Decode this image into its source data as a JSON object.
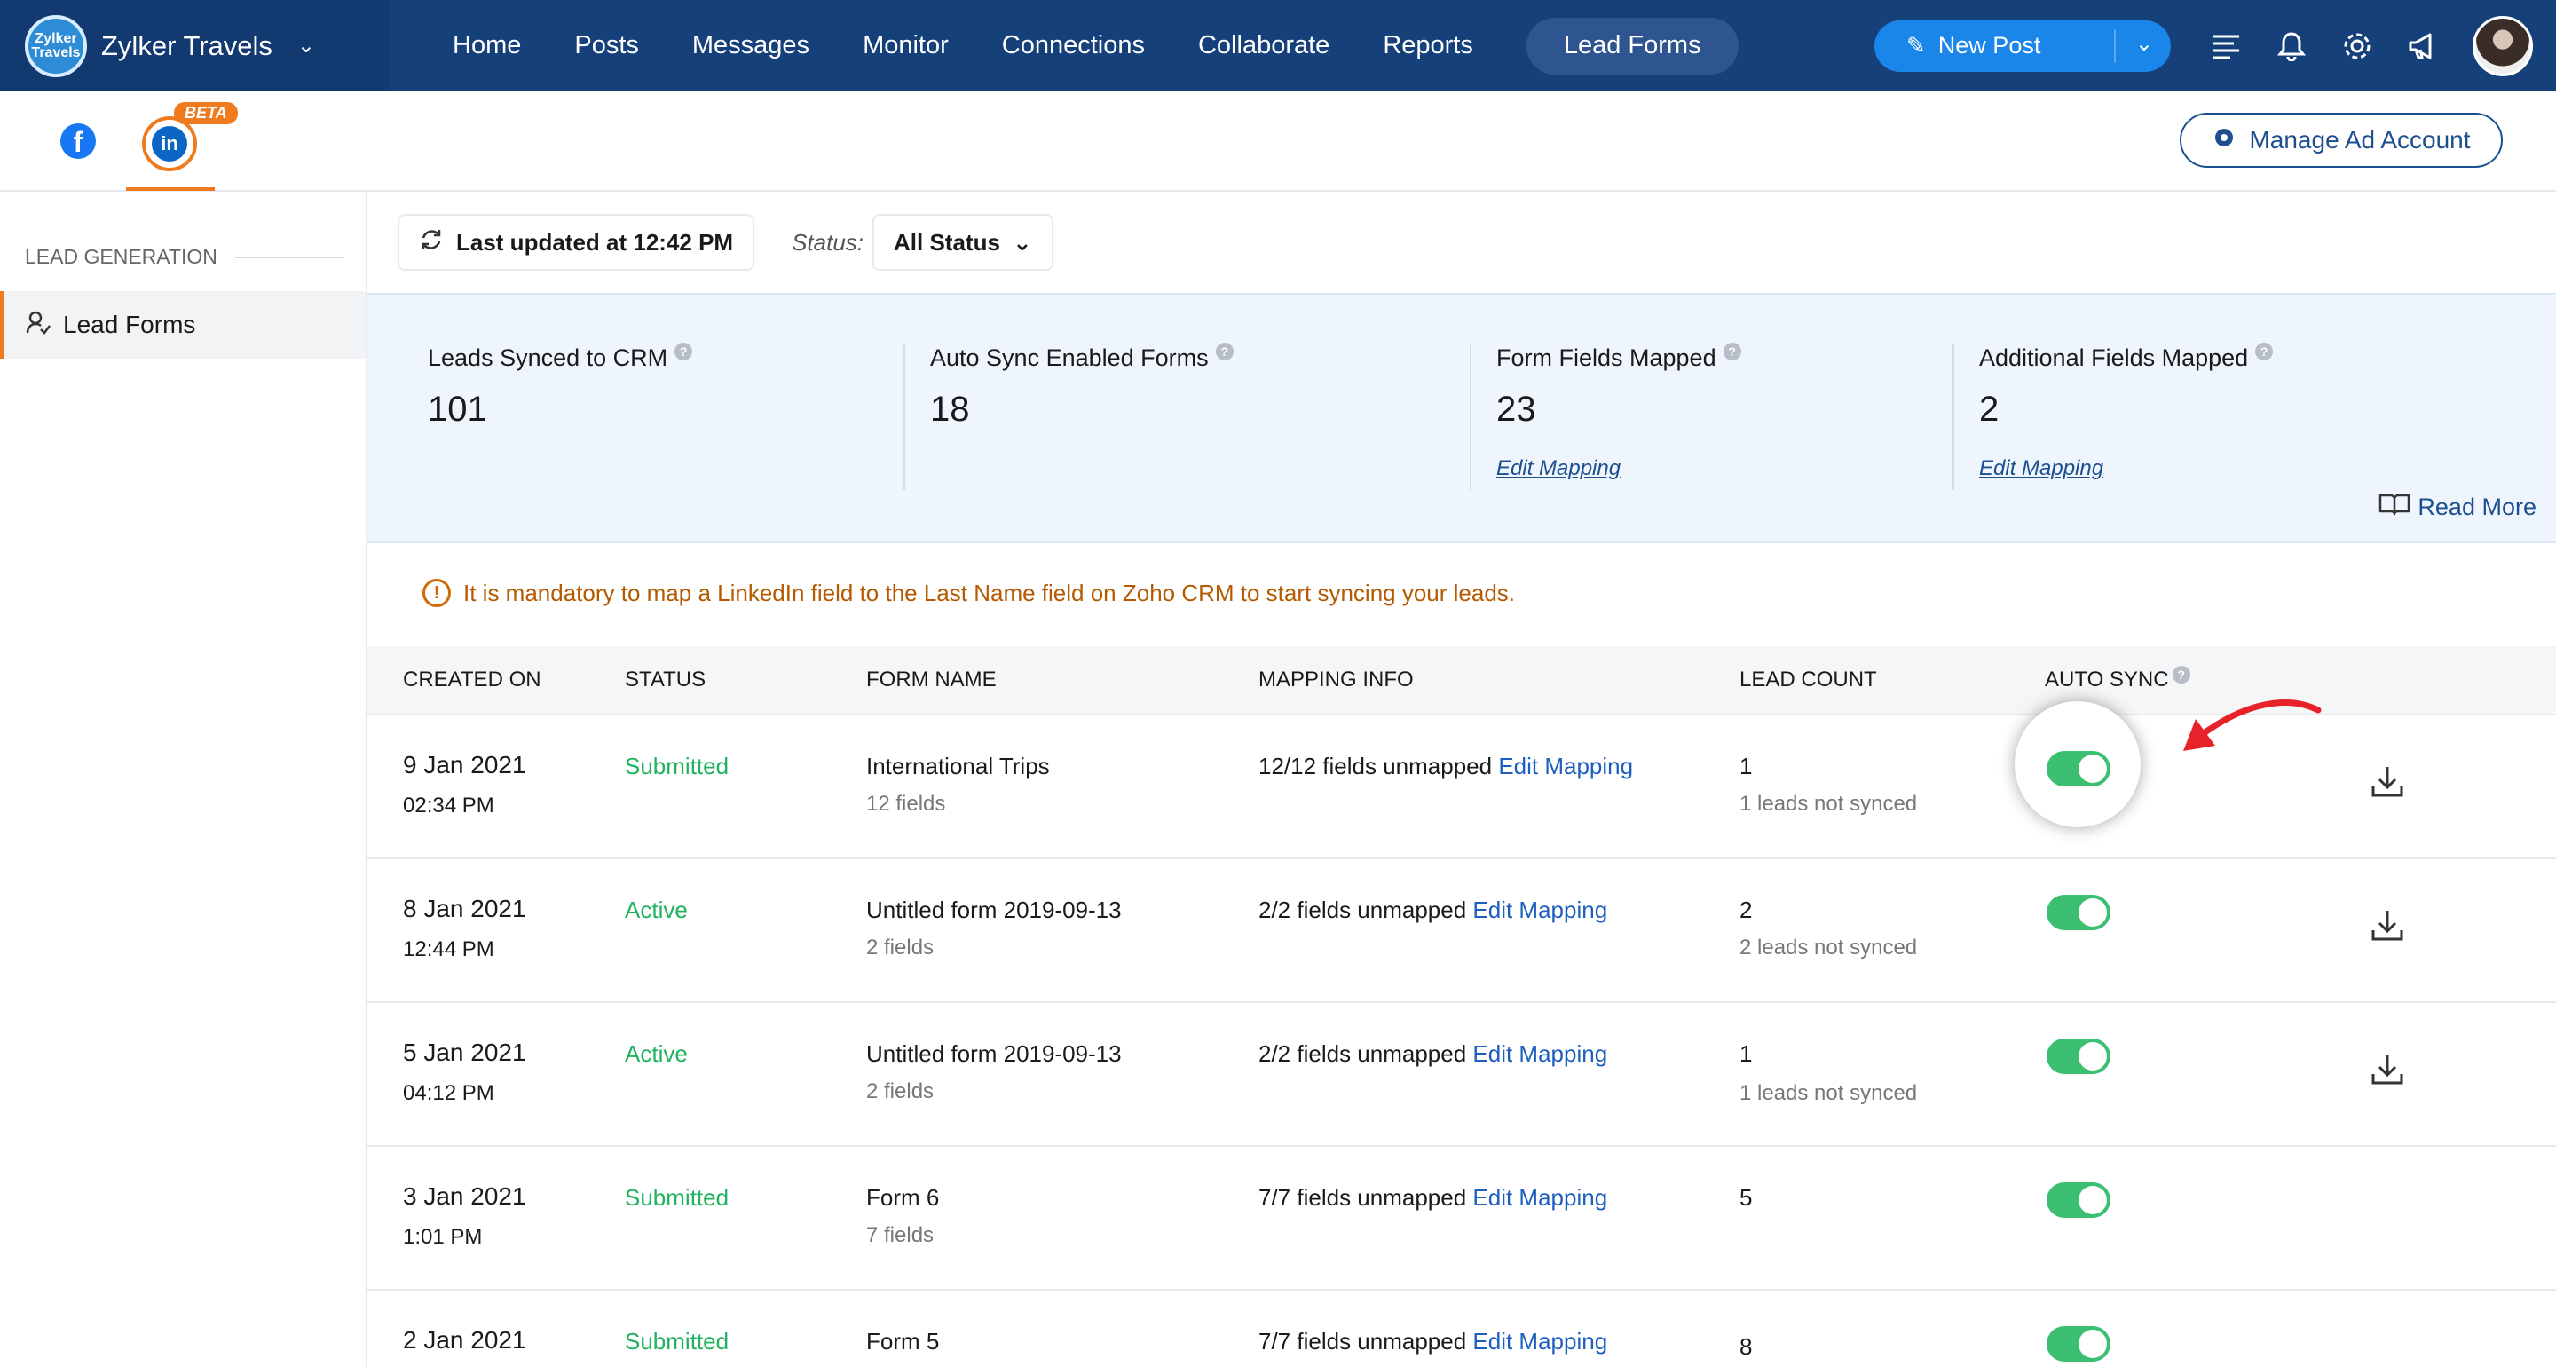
{
  "brand": {
    "name": "Zylker Travels",
    "logo_text": "Zylker Travels"
  },
  "nav": {
    "items": [
      "Home",
      "Posts",
      "Messages",
      "Monitor",
      "Connections",
      "Collaborate",
      "Reports",
      "Lead Forms"
    ],
    "active": "Lead Forms"
  },
  "toolbar": {
    "new_post_label": "New Post"
  },
  "subheader": {
    "beta_label": "BETA",
    "manage_ad_label": "Manage Ad Account"
  },
  "sidebar": {
    "section_title": "LEAD GENERATION",
    "item_label": "Lead Forms"
  },
  "filters": {
    "last_updated": "Last updated at 12:42 PM",
    "status_label": "Status:",
    "status_value": "All Status"
  },
  "stats": [
    {
      "label": "Leads Synced to CRM",
      "value": "101"
    },
    {
      "label": "Auto Sync Enabled Forms",
      "value": "18"
    },
    {
      "label": "Form Fields Mapped",
      "value": "23",
      "link": "Edit Mapping"
    },
    {
      "label": "Additional Fields Mapped",
      "value": "2",
      "link": "Edit Mapping"
    }
  ],
  "read_more": "Read More",
  "warning": "It is mandatory to map a LinkedIn field to the Last Name field on Zoho CRM to start syncing your leads.",
  "table": {
    "headers": [
      "CREATED ON",
      "STATUS",
      "FORM NAME",
      "MAPPING INFO",
      "LEAD COUNT",
      "AUTO SYNC"
    ],
    "rows": [
      {
        "date": "9 Jan 2021",
        "time": "02:34 PM",
        "status": "Submitted",
        "form": "International Trips",
        "fields": "12 fields",
        "mapping": "12/12 fields unmapped",
        "mapping_link": "Edit Mapping",
        "count": "1",
        "not_synced": "1 leads not synced",
        "auto_sync": true
      },
      {
        "date": "8 Jan 2021",
        "time": "12:44 PM",
        "status": "Active",
        "form": "Untitled form 2019-09-13",
        "fields": "2 fields",
        "mapping": "2/2 fields unmapped",
        "mapping_link": "Edit Mapping",
        "count": "2",
        "not_synced": "2 leads not synced",
        "auto_sync": true
      },
      {
        "date": "5 Jan 2021",
        "time": "04:12 PM",
        "status": "Active",
        "form": "Untitled form 2019-09-13",
        "fields": "2 fields",
        "mapping": "2/2 fields unmapped",
        "mapping_link": "Edit Mapping",
        "count": "1",
        "not_synced": "1 leads not synced",
        "auto_sync": true
      },
      {
        "date": "3 Jan 2021",
        "time": "1:01 PM",
        "status": "Submitted",
        "form": "Form 6",
        "fields": "7 fields",
        "mapping": "7/7 fields unmapped",
        "mapping_link": "Edit Mapping",
        "count": "5",
        "not_synced": "",
        "auto_sync": true
      },
      {
        "date": "2 Jan 2021",
        "time": "",
        "status": "Submitted",
        "form": "Form 5",
        "fields": "",
        "mapping": "7/7 fields unmapped",
        "mapping_link": "Edit Mapping",
        "count": "8",
        "not_synced": "",
        "auto_sync": true
      }
    ]
  },
  "colors": {
    "topbar": "#16407a",
    "accent": "#ef7b1e",
    "toggle_on": "#3dbf72",
    "status_green": "#21b25f",
    "link": "#1d5fbf"
  }
}
